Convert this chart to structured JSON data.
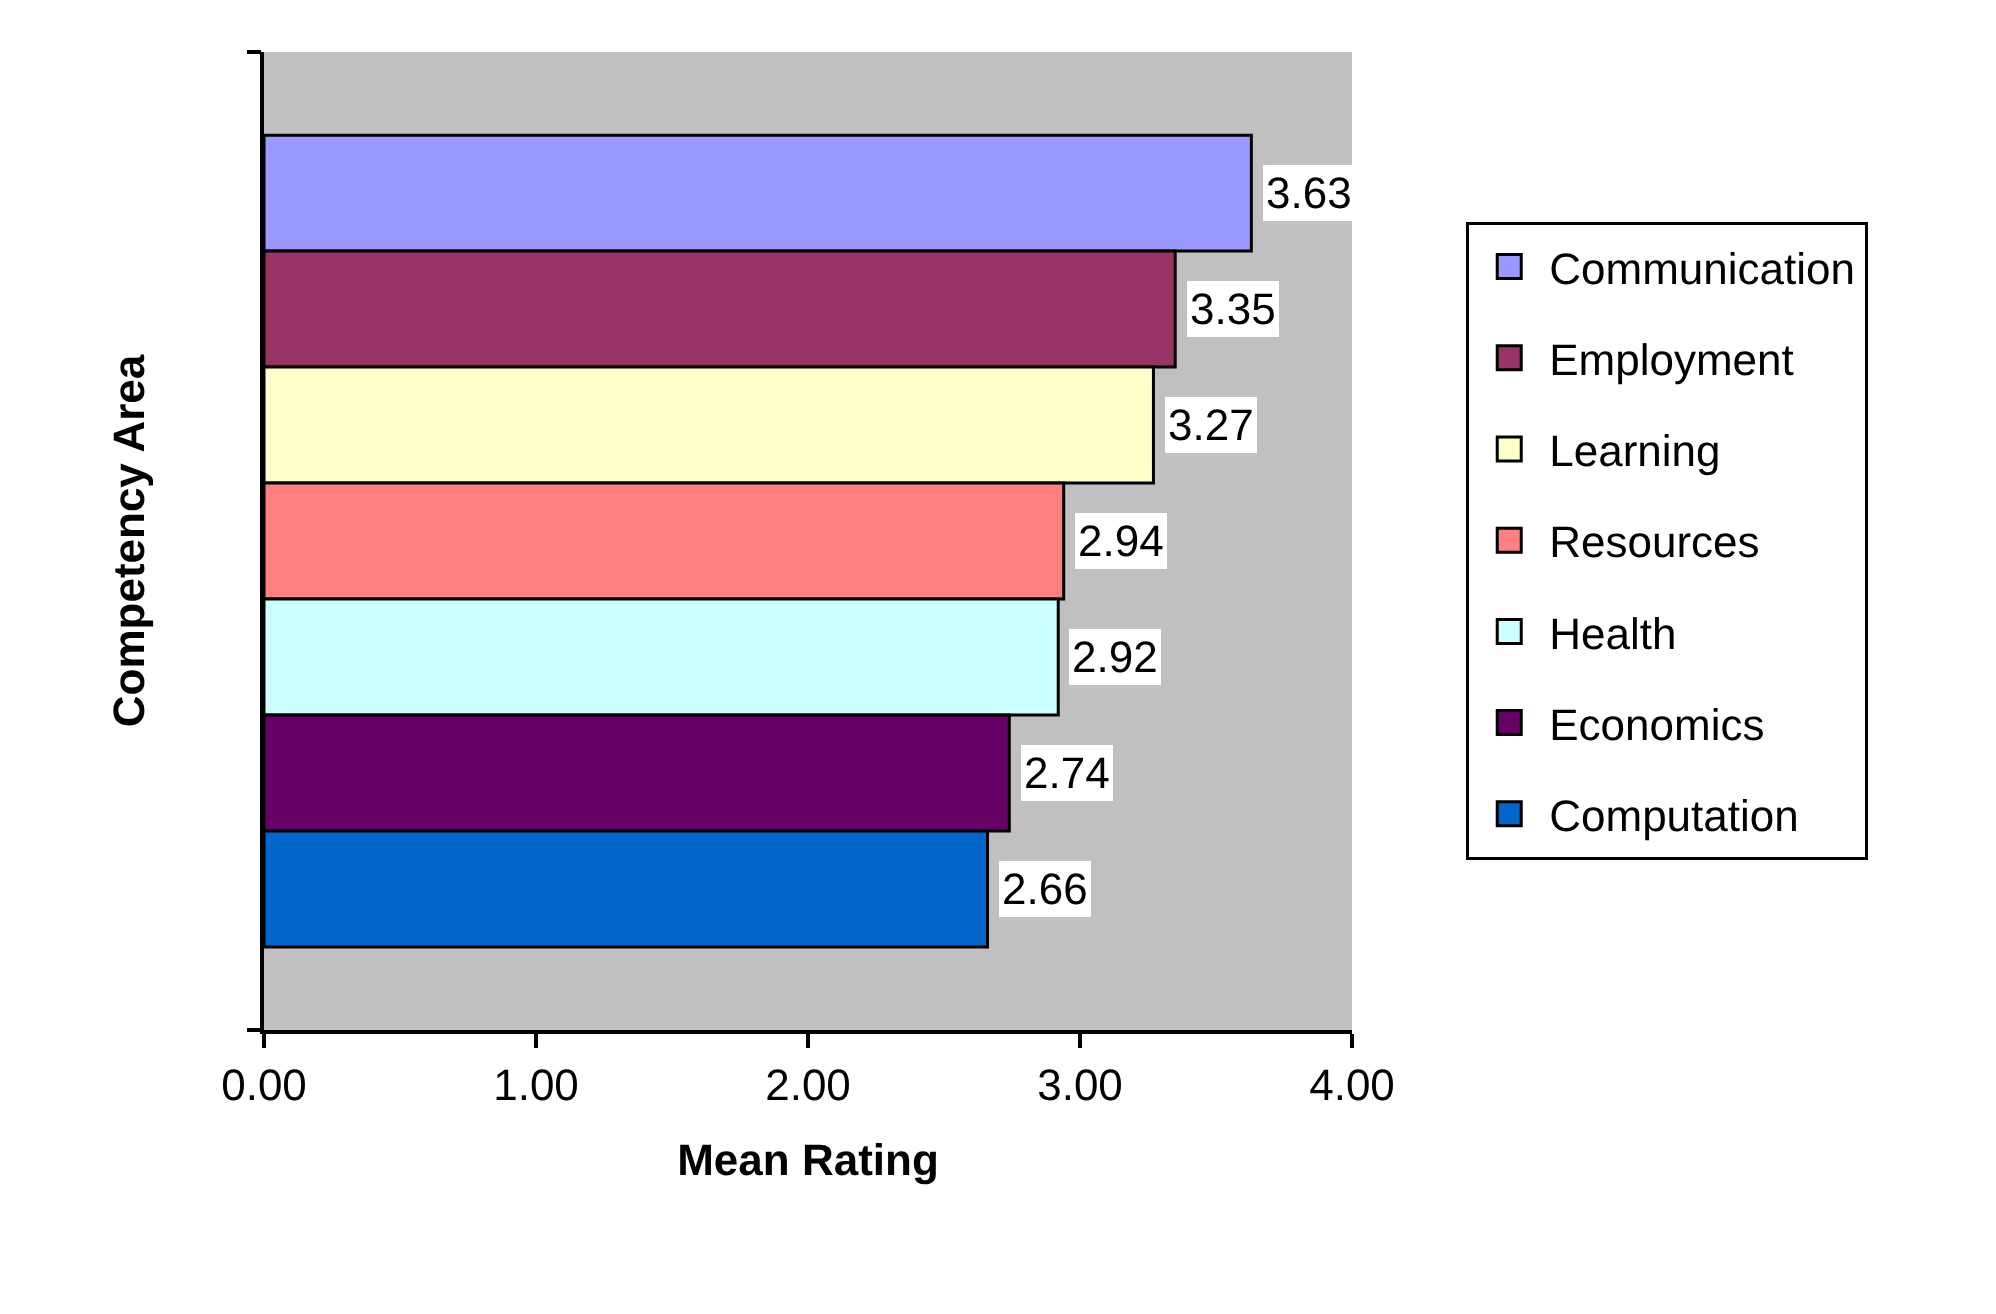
{
  "chart_data": {
    "type": "bar",
    "orientation": "horizontal",
    "xlabel": "Mean Rating",
    "ylabel": "Competency Area",
    "categories": [
      null
    ],
    "series": [
      {
        "name": "Communication",
        "color": "#9999ff",
        "values": [
          3.63
        ]
      },
      {
        "name": "Employment",
        "color": "#993366",
        "values": [
          3.35
        ]
      },
      {
        "name": "Learning",
        "color": "#ffffcc",
        "values": [
          3.27
        ]
      },
      {
        "name": "Resources",
        "color": "#ff8080",
        "values": [
          2.94
        ]
      },
      {
        "name": "Health",
        "color": "#ccffff",
        "values": [
          2.92
        ]
      },
      {
        "name": "Economics",
        "color": "#660066",
        "values": [
          2.74
        ]
      },
      {
        "name": "Computation",
        "color": "#0066cc",
        "values": [
          2.66
        ]
      }
    ],
    "xlim": [
      0,
      4
    ],
    "xticks": [
      {
        "value": 0,
        "label": "0.00"
      },
      {
        "value": 1,
        "label": "1.00"
      },
      {
        "value": 2,
        "label": "2.00"
      },
      {
        "value": 3,
        "label": "3.00"
      },
      {
        "value": 4,
        "label": "4.00"
      }
    ],
    "data_labels": true,
    "legend": "right",
    "grid": false
  }
}
